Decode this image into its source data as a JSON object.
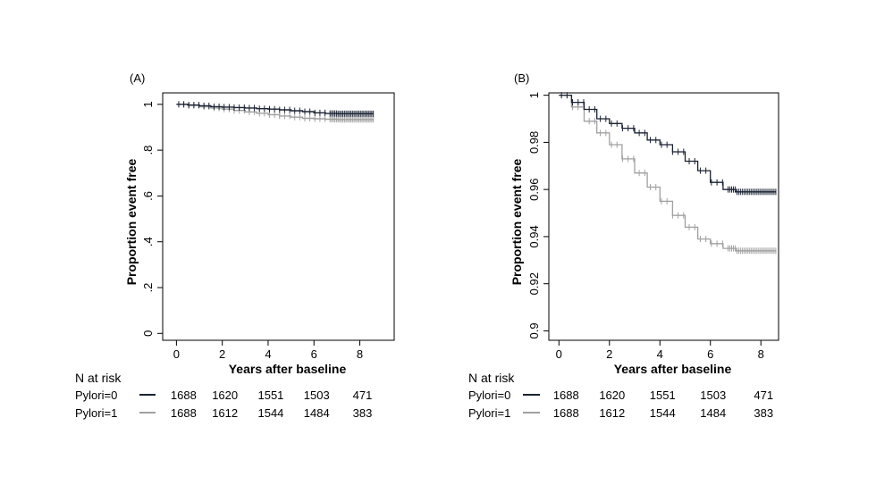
{
  "chart_data": [
    {
      "panel_label": "(A)",
      "type": "line",
      "xlabel": "Years after baseline",
      "ylabel": "Proportion event free",
      "xlim": [
        -0.6,
        9.5
      ],
      "ylim": [
        -0.03,
        1.05
      ],
      "xticks": [
        0,
        2,
        4,
        6,
        8
      ],
      "yticks": [
        0,
        0.2,
        0.4,
        0.6,
        0.8,
        1
      ],
      "ytick_labels": [
        "0",
        ".2",
        ".4",
        ".6",
        ".8",
        "1"
      ],
      "grid": false,
      "series": [
        {
          "name": "Pylori=0",
          "color": "#1a2233",
          "x": [
            0,
            0.5,
            1,
            1.5,
            2,
            2.5,
            3,
            3.5,
            4,
            4.5,
            5,
            5.5,
            6,
            6.5,
            7,
            7.5,
            8,
            8.6
          ],
          "y": [
            1.0,
            0.997,
            0.994,
            0.99,
            0.988,
            0.986,
            0.984,
            0.981,
            0.979,
            0.976,
            0.972,
            0.968,
            0.963,
            0.96,
            0.959,
            0.959,
            0.959,
            0.959
          ]
        },
        {
          "name": "Pylori=1",
          "color": "#a0a0a0",
          "x": [
            0,
            0.5,
            1,
            1.5,
            2,
            2.5,
            3,
            3.5,
            4,
            4.5,
            5,
            5.5,
            6,
            6.5,
            7,
            7.5,
            8,
            8.6
          ],
          "y": [
            1.0,
            0.995,
            0.989,
            0.984,
            0.979,
            0.973,
            0.967,
            0.961,
            0.955,
            0.949,
            0.944,
            0.939,
            0.937,
            0.935,
            0.934,
            0.934,
            0.934,
            0.934
          ]
        }
      ],
      "risk_table": {
        "title": "N at risk",
        "rows": [
          {
            "label": "Pylori=0",
            "color": "#1a2233",
            "values": [
              1688,
              1620,
              1551,
              1503,
              471
            ]
          },
          {
            "label": "Pylori=1",
            "color": "#a0a0a0",
            "values": [
              1688,
              1612,
              1544,
              1484,
              383
            ]
          }
        ]
      }
    },
    {
      "panel_label": "(B)",
      "type": "line",
      "xlabel": "Years after baseline",
      "ylabel": "Proportion event free",
      "xlim": [
        -0.4,
        8.7
      ],
      "ylim": [
        0.896,
        1.001
      ],
      "xticks": [
        0,
        2,
        4,
        6,
        8
      ],
      "yticks": [
        0.9,
        0.92,
        0.94,
        0.96,
        0.98,
        1
      ],
      "ytick_labels": [
        "0.9",
        "0.92",
        "0.94",
        "0.96",
        "0.98",
        "1"
      ],
      "grid": false,
      "series": [
        {
          "name": "Pylori=0",
          "color": "#1a2233",
          "x": [
            0,
            0.5,
            1,
            1.5,
            2,
            2.5,
            3,
            3.5,
            4,
            4.5,
            5,
            5.5,
            6,
            6.5,
            7,
            7.5,
            8,
            8.6
          ],
          "y": [
            1.0,
            0.997,
            0.994,
            0.99,
            0.988,
            0.986,
            0.984,
            0.981,
            0.979,
            0.976,
            0.972,
            0.968,
            0.963,
            0.96,
            0.959,
            0.959,
            0.959,
            0.959
          ]
        },
        {
          "name": "Pylori=1",
          "color": "#a0a0a0",
          "x": [
            0,
            0.5,
            1,
            1.5,
            2,
            2.5,
            3,
            3.5,
            4,
            4.5,
            5,
            5.5,
            6,
            6.5,
            7,
            7.5,
            8,
            8.6
          ],
          "y": [
            1.0,
            0.995,
            0.989,
            0.984,
            0.979,
            0.973,
            0.967,
            0.961,
            0.955,
            0.949,
            0.944,
            0.939,
            0.937,
            0.935,
            0.934,
            0.934,
            0.934,
            0.934
          ]
        }
      ],
      "risk_table": {
        "title": "N at risk",
        "rows": [
          {
            "label": "Pylori=0",
            "color": "#1a2233",
            "values": [
              1688,
              1620,
              1551,
              1503,
              471
            ]
          },
          {
            "label": "Pylori=1",
            "color": "#a0a0a0",
            "values": [
              1688,
              1612,
              1544,
              1484,
              383
            ]
          }
        ]
      }
    }
  ]
}
